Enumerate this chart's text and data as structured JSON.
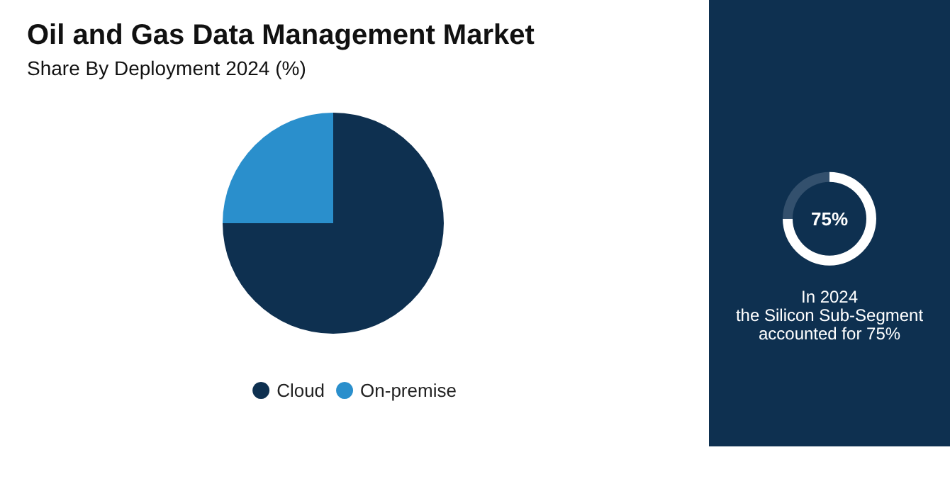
{
  "chart_data": [
    {
      "type": "pie",
      "title": "Oil and Gas Data Management Market",
      "subtitle": "Share By Deployment 2024 (%)",
      "categories": [
        "Cloud",
        "On-premise"
      ],
      "values": [
        75,
        25
      ],
      "colors": [
        "#0e3050",
        "#2a8fcc"
      ],
      "legend": "bottom"
    },
    {
      "type": "donut",
      "categories": [
        null,
        null
      ],
      "values": [
        75,
        25
      ],
      "colors": [
        "#ffffff",
        "#33506d"
      ],
      "annotations": [
        "75%",
        "In 2024\nthe Silicon Sub-Segment\naccounted for 75%"
      ]
    }
  ]
}
